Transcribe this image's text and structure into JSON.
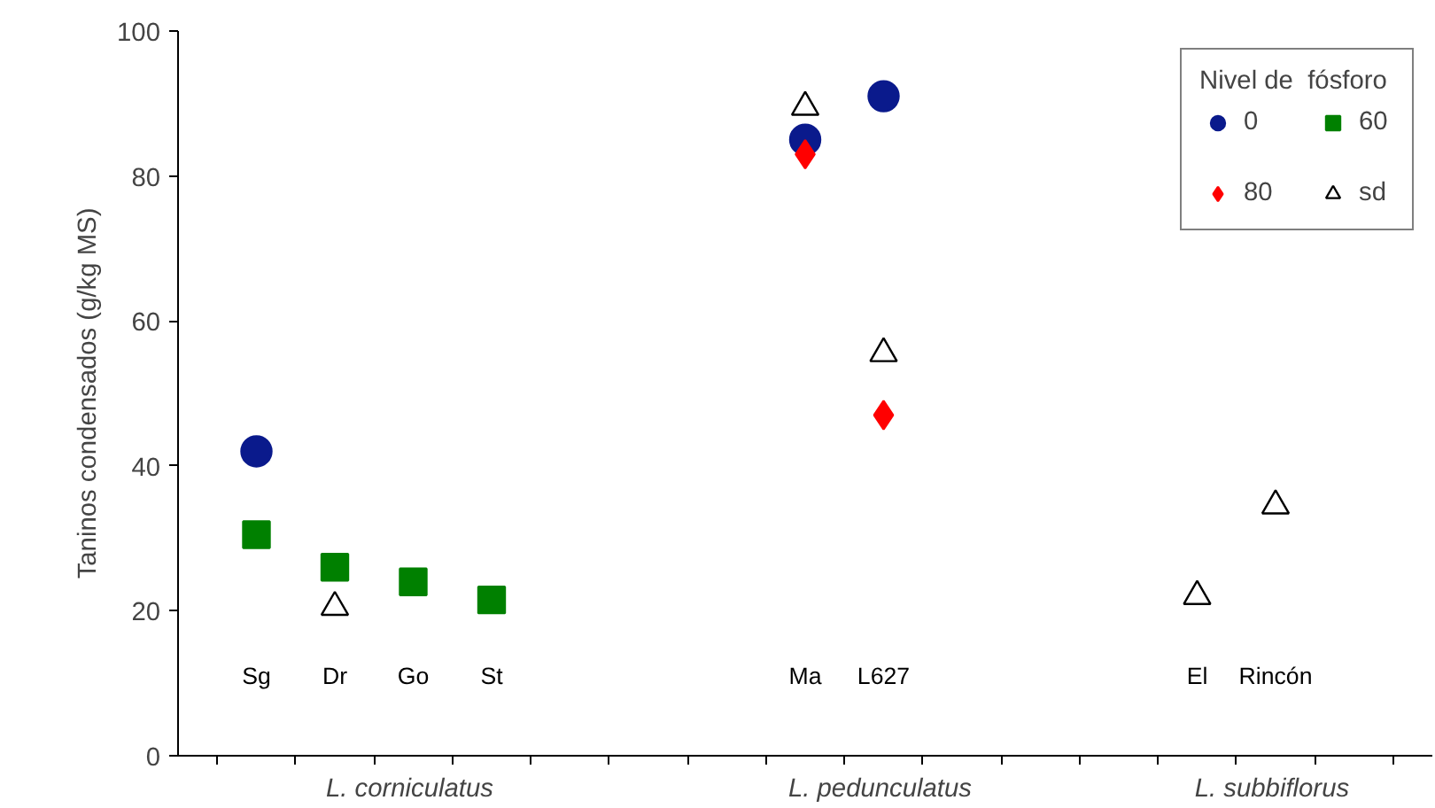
{
  "chart_data": {
    "type": "scatter",
    "ylabel": "Taninos condensados (g/kg MS)",
    "legend_title": "Nivel de  fósforo",
    "legend": "top right",
    "grid": false,
    "tick_labels": "y",
    "categories": [
      "Sg",
      "Dr",
      "Go",
      "St",
      null,
      null,
      null,
      "Ma",
      "L627",
      null,
      null,
      null,
      "El",
      "Rincón",
      null
    ],
    "ylim": [
      0,
      100
    ],
    "yticks": [
      0,
      20,
      40,
      60,
      80,
      100
    ],
    "annotations": [
      "L.  corniculatus",
      "L.  pedunculatus",
      "L.  subbiflorus"
    ],
    "series": [
      {
        "name": "0",
        "color": "#0a1a8c",
        "marker": "circle",
        "values": [
          42,
          null,
          null,
          null,
          null,
          null,
          null,
          85,
          91,
          null,
          null,
          null,
          null,
          null,
          null
        ]
      },
      {
        "name": "60",
        "color": "#008000",
        "marker": "square",
        "values": [
          30.5,
          26,
          24,
          21.5,
          null,
          null,
          null,
          null,
          null,
          null,
          null,
          null,
          null,
          null,
          null
        ]
      },
      {
        "name": "80",
        "color": "#ff0000",
        "marker": "diamond",
        "values": [
          null,
          null,
          null,
          null,
          null,
          null,
          null,
          83,
          47,
          null,
          null,
          null,
          null,
          null,
          null
        ]
      },
      {
        "name": "sd",
        "color": "#000000",
        "marker": "triangle",
        "values": [
          null,
          20.5,
          null,
          null,
          null,
          null,
          null,
          89.5,
          55.5,
          null,
          null,
          null,
          22,
          34.5,
          null
        ]
      }
    ]
  }
}
